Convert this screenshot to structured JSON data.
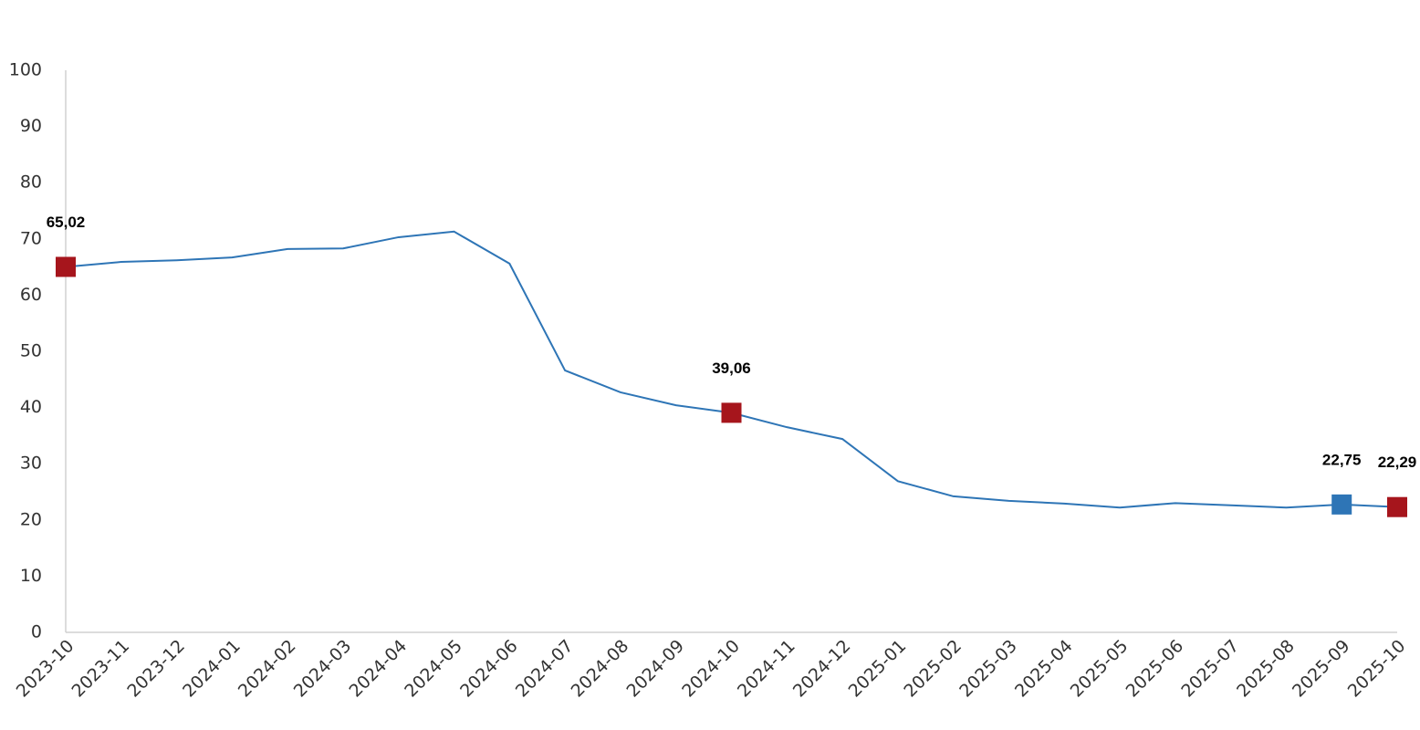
{
  "chart_data": {
    "type": "line",
    "categories": [
      "2023-10",
      "2023-11",
      "2023-12",
      "2024-01",
      "2024-02",
      "2024-03",
      "2024-04",
      "2024-05",
      "2024-06",
      "2024-07",
      "2024-08",
      "2024-09",
      "2024-10",
      "2024-11",
      "2024-12",
      "2025-01",
      "2025-02",
      "2025-03",
      "2025-04",
      "2025-05",
      "2025-06",
      "2025-07",
      "2025-08",
      "2025-09",
      "2025-10"
    ],
    "series": [
      {
        "color": "#2e75b6",
        "values": [
          65.02,
          65.9,
          66.2,
          66.7,
          68.2,
          68.3,
          70.3,
          71.3,
          65.6,
          46.6,
          42.7,
          40.4,
          39.06,
          36.5,
          34.4,
          26.9,
          24.2,
          23.4,
          22.9,
          22.2,
          23.0,
          22.6,
          22.2,
          22.75,
          22.29
        ],
        "value_labels": [
          "65,02",
          null,
          null,
          null,
          null,
          null,
          null,
          null,
          null,
          null,
          null,
          null,
          "39,06",
          null,
          null,
          null,
          null,
          null,
          null,
          null,
          null,
          null,
          null,
          "22,75",
          "22,29"
        ],
        "marker_colors": [
          "#a6151c",
          null,
          null,
          null,
          null,
          null,
          null,
          null,
          null,
          null,
          null,
          null,
          "#a6151c",
          null,
          null,
          null,
          null,
          null,
          null,
          null,
          null,
          null,
          null,
          "#2e75b6",
          "#a6151c"
        ]
      }
    ],
    "ylim": [
      0,
      100
    ],
    "yticks": [
      0,
      10,
      20,
      30,
      40,
      50,
      60,
      70,
      80,
      90,
      100
    ],
    "grid": false
  }
}
